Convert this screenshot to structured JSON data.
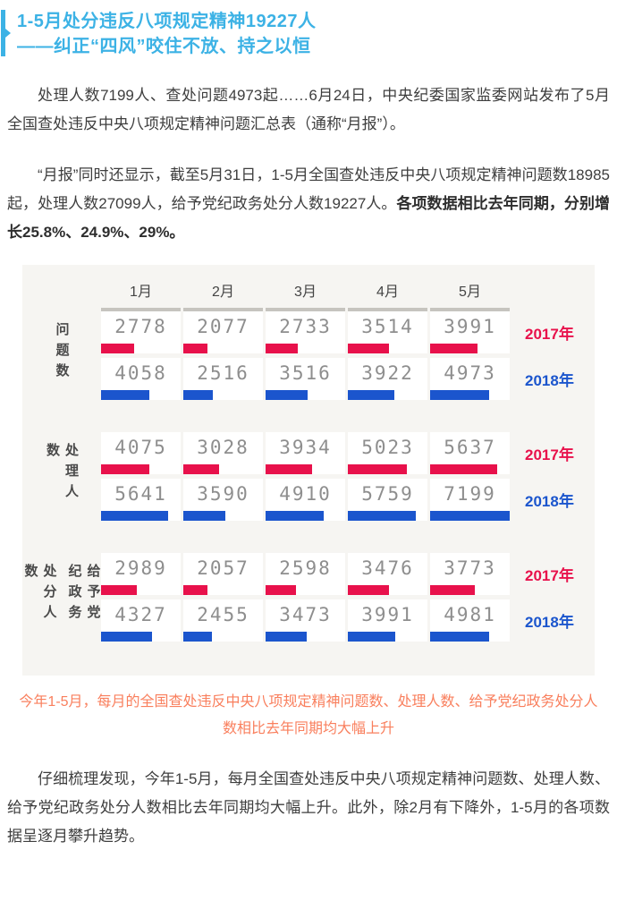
{
  "title": {
    "line1": "1-5月处分违反八项规定精神19227人",
    "line2": "——纠正“四风”咬住不放、持之以恒"
  },
  "paragraphs": {
    "p1": "处理人数7199人、查处问题4973起……6月24日，中央纪委国家监委网站发布了5月全国查处违反中央八项规定精神问题汇总表（通称“月报”）。",
    "p2_normal": "“月报”同时还显示，截至5月31日，1-5月全国查处违反中央八项规定精神问题数18985起，处理人数27099人，给予党纪政务处分人数19227人。",
    "p2_bold": "各项数据相比去年同期，分别增长25.8%、24.9%、29%。",
    "p3": "仔细梳理发现，今年1-5月，每月全国查处违反中央八项规定精神问题数、处理人数、给予党纪政务处分人数相比去年同期均大幅上升。此外，除2月有下降外，1-5月的各项数据呈逐月攀升趋势。"
  },
  "chart_data": {
    "type": "bar",
    "title": "全国查处违反中央八项规定精神问题月度对比（2017年 vs 2018年）",
    "categories": [
      "1月",
      "2月",
      "3月",
      "4月",
      "5月"
    ],
    "legend_position": "right",
    "grid": false,
    "bar_scale": {
      "max_value": 7199,
      "fill_factor": 1.07
    },
    "colors": {
      "year2017": "#e8114b",
      "year2018": "#1b55cd"
    },
    "groups": [
      {
        "id": "problem-count",
        "label_columns": [
          "问题数"
        ],
        "series": [
          {
            "name": "2017年",
            "color": "#e8114b",
            "values": [
              2778,
              2077,
              2733,
              3514,
              3991
            ]
          },
          {
            "name": "2018年",
            "color": "#1b55cd",
            "values": [
              4058,
              2516,
              3516,
              3922,
              4973
            ]
          }
        ]
      },
      {
        "id": "processed-count",
        "label_columns": [
          "处理人数"
        ],
        "series": [
          {
            "name": "2017年",
            "color": "#e8114b",
            "values": [
              4075,
              3028,
              3934,
              5023,
              5637
            ]
          },
          {
            "name": "2018年",
            "color": "#1b55cd",
            "values": [
              5641,
              3590,
              4910,
              5759,
              7199
            ]
          }
        ]
      },
      {
        "id": "punished-count",
        "label_columns": [
          "给予党纪政务",
          "处分人数"
        ],
        "series": [
          {
            "name": "2017年",
            "color": "#e8114b",
            "values": [
              2989,
              2057,
              2598,
              3476,
              3773
            ]
          },
          {
            "name": "2018年",
            "color": "#1b55cd",
            "values": [
              4327,
              2455,
              3473,
              3991,
              4981
            ]
          }
        ]
      }
    ]
  },
  "caption": "今年1-5月，每月的全国查处违反中央八项规定精神问题数、处理人数、给予党纪政务处分人数相比去年同期均大幅上升"
}
